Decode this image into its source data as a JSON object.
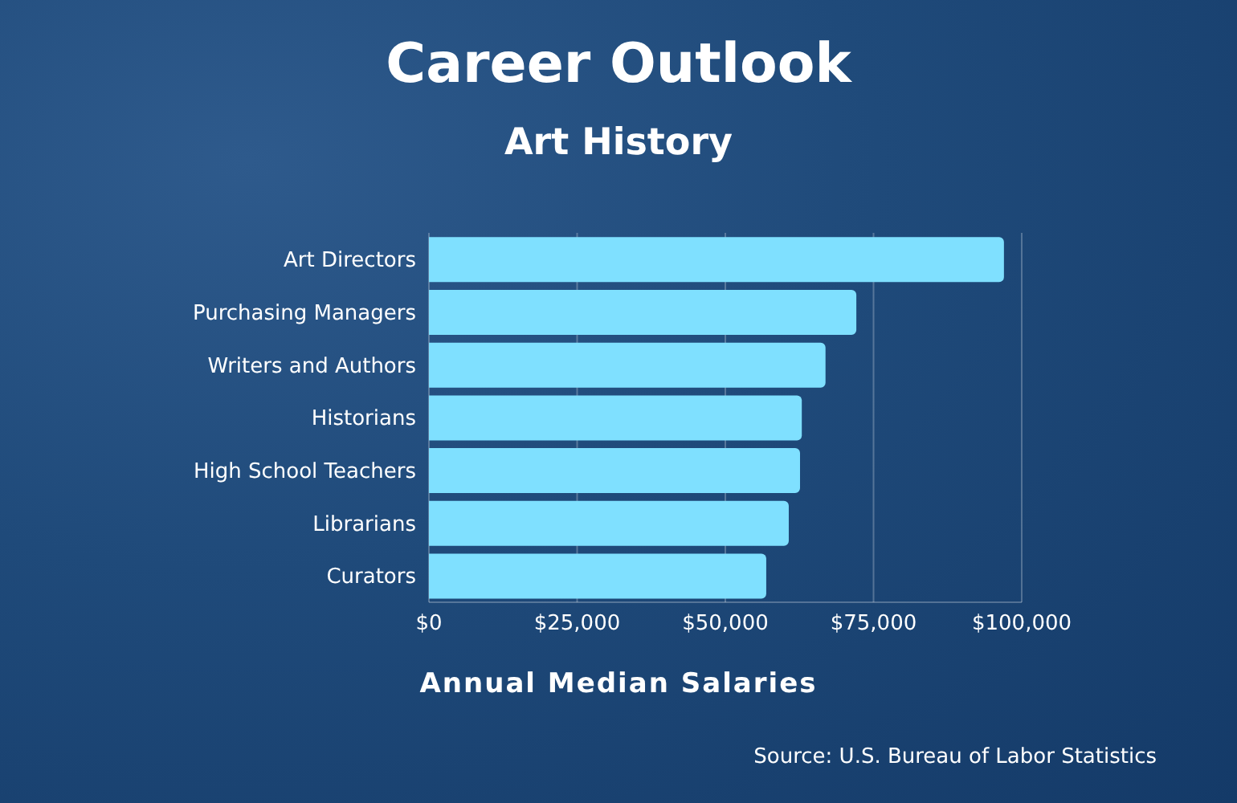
{
  "chart_data": {
    "type": "bar",
    "orientation": "horizontal",
    "title": "Career Outlook",
    "subtitle": "Art History",
    "xlabel": "Annual Median Salaries",
    "categories": [
      "Art Directors",
      "Purchasing Managers",
      "Writers and Authors",
      "Historians",
      "High School Teachers",
      "Librarians",
      "Curators"
    ],
    "values": [
      97000,
      72100,
      66900,
      62900,
      62600,
      60700,
      56900
    ],
    "color": "#7fe0ff",
    "xlim": [
      0,
      100000
    ],
    "xticks": [
      {
        "value": 0,
        "label": "$0"
      },
      {
        "value": 25000,
        "label": "$25,000"
      },
      {
        "value": 50000,
        "label": "$50,000"
      },
      {
        "value": 75000,
        "label": "$75,000"
      },
      {
        "value": 100000,
        "label": "$100,000"
      }
    ],
    "grid": "x",
    "annotations": [
      "Source: U.S. Bureau of Labor Statistics"
    ]
  }
}
